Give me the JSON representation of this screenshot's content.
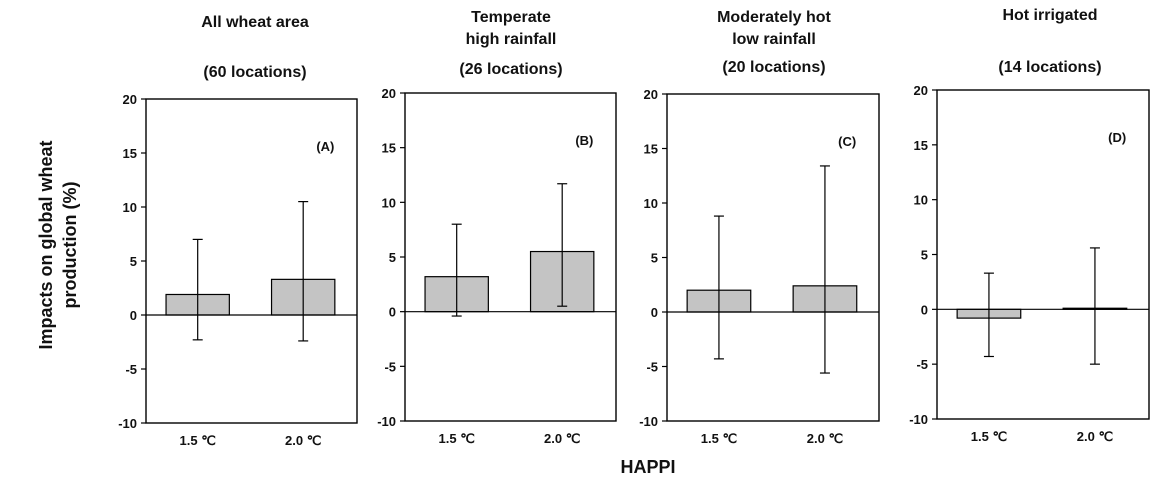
{
  "xlabel": "HAPPI",
  "ylabel_line1": "Impacts on global wheat",
  "ylabel_line2": "production (%)",
  "colors": {
    "bar_fill": "#c4c4c4",
    "stroke": "#000000"
  },
  "chart_data": [
    {
      "type": "bar",
      "title_lines": [
        "All wheat area",
        "",
        "(60 locations)"
      ],
      "panel_label": "(A)",
      "categories": [
        "1.5 ℃",
        "2.0 ℃"
      ],
      "values": [
        1.9,
        3.3
      ],
      "error_low": [
        -2.3,
        -2.4
      ],
      "error_high": [
        7.0,
        10.5
      ],
      "ylim": [
        -10,
        20
      ],
      "yticks": [
        -10,
        -5,
        0,
        5,
        10,
        15,
        20
      ],
      "ylabel": "Impacts on global wheat production (%)"
    },
    {
      "type": "bar",
      "title_lines": [
        "Temperate",
        "high rainfall",
        "(26 locations)"
      ],
      "panel_label": "(B)",
      "categories": [
        "1.5 ℃",
        "2.0 ℃"
      ],
      "values": [
        3.2,
        5.5
      ],
      "error_low": [
        -0.4,
        0.5
      ],
      "error_high": [
        8.0,
        11.7
      ],
      "ylim": [
        -10,
        20
      ],
      "yticks": [
        -10,
        -5,
        0,
        5,
        10,
        15,
        20
      ]
    },
    {
      "type": "bar",
      "title_lines": [
        "Moderately hot",
        "low rainfall",
        "(20 locations)"
      ],
      "panel_label": "(C)",
      "categories": [
        "1.5 ℃",
        "2.0 ℃"
      ],
      "values": [
        2.0,
        2.4
      ],
      "error_low": [
        -4.3,
        -5.6
      ],
      "error_high": [
        8.8,
        13.4
      ],
      "ylim": [
        -10,
        20
      ],
      "yticks": [
        -10,
        -5,
        0,
        5,
        10,
        15,
        20
      ]
    },
    {
      "type": "bar",
      "title_lines": [
        "Hot irrigated",
        "",
        "(14 locations)"
      ],
      "panel_label": "(D)",
      "categories": [
        "1.5 ℃",
        "2.0 ℃"
      ],
      "values": [
        -0.8,
        0.1
      ],
      "error_low": [
        -4.3,
        -5.0
      ],
      "error_high": [
        3.3,
        5.6
      ],
      "ylim": [
        -10,
        20
      ],
      "yticks": [
        -10,
        -5,
        0,
        5,
        10,
        15,
        20
      ]
    }
  ]
}
